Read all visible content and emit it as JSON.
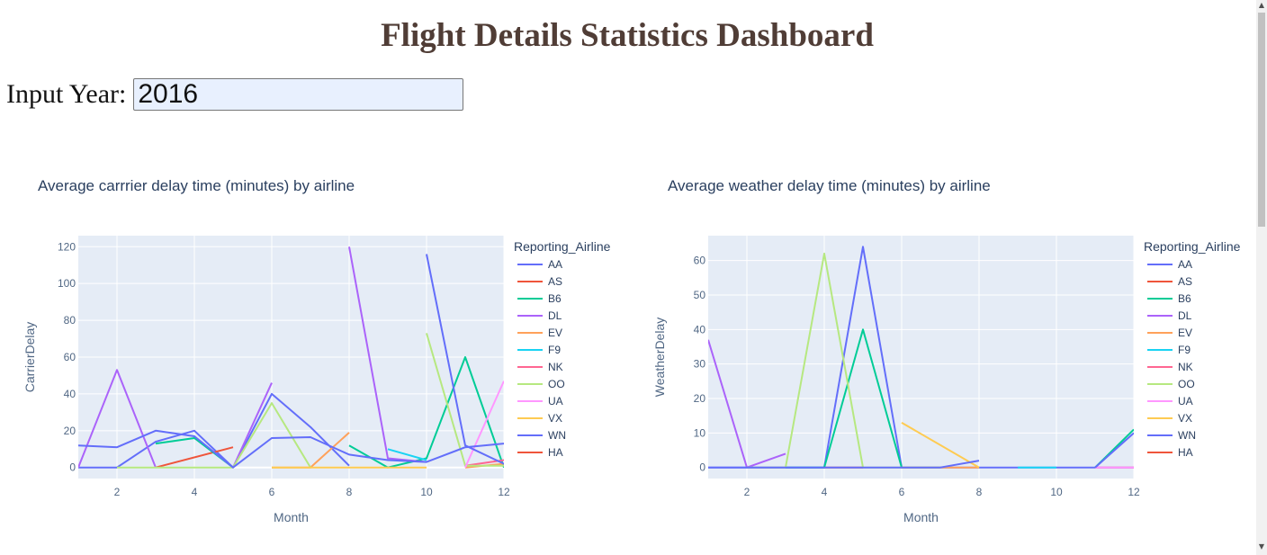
{
  "page": {
    "title": "Flight Details Statistics Dashboard"
  },
  "input": {
    "label": "Input Year:",
    "value": "2016"
  },
  "colors": {
    "title": "#503D36",
    "plot_bg": "#E5ECF6",
    "axis_text": "#506784",
    "title_text": "#2a3f5f"
  },
  "chart_data": [
    {
      "type": "line",
      "title": "Average carrrier delay time (minutes) by airline",
      "xlabel": "Month",
      "ylabel": "CarrierDelay",
      "xlim": [
        1,
        12
      ],
      "ylim": [
        -6,
        126
      ],
      "xticks": [
        2,
        4,
        6,
        8,
        10,
        12
      ],
      "yticks": [
        0,
        20,
        40,
        60,
        80,
        100,
        120
      ],
      "grid": true,
      "legend_title": "Reporting_Airline",
      "legend_position": "right",
      "series": [
        {
          "name": "AA",
          "color": "#636efa",
          "points": [
            [
              1,
              0
            ],
            [
              2,
              0
            ],
            [
              3,
              14
            ],
            [
              4,
              20
            ],
            [
              5,
              0
            ],
            [
              6,
              40
            ],
            [
              7,
              22
            ],
            [
              8,
              1
            ]
          ]
        },
        {
          "name": "AS",
          "color": "#EF553B",
          "points": [
            [
              3,
              0
            ],
            [
              5,
              11
            ]
          ]
        },
        {
          "name": "B6",
          "color": "#00cc96",
          "points": [
            [
              3,
              13
            ],
            [
              4,
              16
            ],
            [
              5,
              0
            ]
          ]
        },
        {
          "name": "B6",
          "color": "#00cc96",
          "points": [
            [
              8,
              12
            ],
            [
              9,
              0
            ],
            [
              10,
              5
            ],
            [
              11,
              60
            ],
            [
              12,
              0
            ]
          ]
        },
        {
          "name": "DL",
          "color": "#ab63fa",
          "points": [
            [
              1,
              0
            ],
            [
              2,
              53
            ],
            [
              3,
              0
            ]
          ]
        },
        {
          "name": "DL",
          "color": "#ab63fa",
          "points": [
            [
              5,
              0
            ],
            [
              6,
              46
            ]
          ]
        },
        {
          "name": "DL",
          "color": "#ab63fa",
          "points": [
            [
              8,
              120
            ],
            [
              9,
              5
            ],
            [
              10,
              3
            ]
          ]
        },
        {
          "name": "EV",
          "color": "#FFA15A",
          "points": [
            [
              6,
              0
            ],
            [
              7,
              0
            ],
            [
              8,
              19
            ]
          ]
        },
        {
          "name": "EV",
          "color": "#FFA15A",
          "points": [
            [
              11,
              0
            ],
            [
              12,
              2
            ]
          ]
        },
        {
          "name": "F9",
          "color": "#19d3f3",
          "points": [
            [
              9,
              10
            ],
            [
              10,
              4
            ]
          ]
        },
        {
          "name": "NK",
          "color": "#FF6692",
          "points": [
            [
              11,
              1
            ],
            [
              12,
              4
            ]
          ]
        },
        {
          "name": "OO",
          "color": "#B6E880",
          "points": [
            [
              2,
              0
            ],
            [
              3,
              0
            ],
            [
              4,
              0
            ],
            [
              5,
              0
            ],
            [
              6,
              35
            ],
            [
              7,
              0
            ]
          ]
        },
        {
          "name": "OO",
          "color": "#B6E880",
          "points": [
            [
              10,
              73
            ],
            [
              11,
              1
            ],
            [
              12,
              1
            ]
          ]
        },
        {
          "name": "UA",
          "color": "#FF97FF",
          "points": [
            [
              11,
              0
            ],
            [
              12,
              47
            ]
          ]
        },
        {
          "name": "VX",
          "color": "#FECB52",
          "points": [
            [
              6,
              0
            ],
            [
              7,
              0
            ],
            [
              8,
              0
            ],
            [
              9,
              0
            ],
            [
              10,
              0
            ]
          ]
        },
        {
          "name": "WN",
          "color": "#636efa",
          "points": [
            [
              1,
              12
            ],
            [
              2,
              11
            ],
            [
              3,
              20
            ],
            [
              4,
              17
            ],
            [
              5,
              0
            ],
            [
              6,
              16
            ],
            [
              7,
              16.5
            ],
            [
              8,
              7
            ],
            [
              9,
              4
            ],
            [
              10,
              3
            ],
            [
              11,
              11
            ],
            [
              12,
              13
            ]
          ]
        },
        {
          "name": "WN",
          "color": "#636efa",
          "points": [
            [
              10,
              116
            ],
            [
              11,
              12
            ],
            [
              12,
              2
            ]
          ]
        },
        {
          "name": "HA",
          "color": "#EF553B",
          "points": []
        }
      ]
    },
    {
      "type": "line",
      "title": "Average weather delay time (minutes) by airline",
      "xlabel": "Month",
      "ylabel": "WeatherDelay",
      "xlim": [
        1,
        12
      ],
      "ylim": [
        -3.2,
        67.2
      ],
      "xticks": [
        2,
        4,
        6,
        8,
        10,
        12
      ],
      "yticks": [
        0,
        10,
        20,
        30,
        40,
        50,
        60
      ],
      "grid": true,
      "legend_title": "Reporting_Airline",
      "legend_position": "right",
      "series": [
        {
          "name": "AA",
          "color": "#636efa",
          "points": [
            [
              1,
              0
            ],
            [
              2,
              0
            ],
            [
              3,
              0
            ],
            [
              4,
              0
            ],
            [
              5,
              64
            ],
            [
              6,
              0
            ],
            [
              7,
              0
            ],
            [
              8,
              0
            ],
            [
              9,
              0
            ],
            [
              10,
              0
            ],
            [
              11,
              0
            ],
            [
              12,
              0
            ]
          ]
        },
        {
          "name": "AS",
          "color": "#EF553B",
          "points": [
            [
              4,
              0
            ],
            [
              5,
              0
            ]
          ]
        },
        {
          "name": "B6",
          "color": "#00cc96",
          "points": [
            [
              3,
              0
            ],
            [
              4,
              0
            ],
            [
              5,
              40
            ],
            [
              6,
              0
            ]
          ]
        },
        {
          "name": "B6",
          "color": "#00cc96",
          "points": [
            [
              11,
              0
            ],
            [
              12,
              11
            ]
          ]
        },
        {
          "name": "DL",
          "color": "#ab63fa",
          "points": [
            [
              1,
              37
            ],
            [
              2,
              0
            ],
            [
              3,
              4
            ]
          ]
        },
        {
          "name": "EV",
          "color": "#FFA15A",
          "points": [
            [
              6,
              0
            ],
            [
              7,
              0
            ],
            [
              8,
              0
            ]
          ]
        },
        {
          "name": "F9",
          "color": "#19d3f3",
          "points": [
            [
              9,
              0
            ],
            [
              10,
              0
            ]
          ]
        },
        {
          "name": "NK",
          "color": "#FF6692",
          "points": [
            [
              11,
              0
            ],
            [
              12,
              0
            ]
          ]
        },
        {
          "name": "OO",
          "color": "#B6E880",
          "points": [
            [
              2,
              0
            ],
            [
              3,
              0
            ],
            [
              4,
              62
            ],
            [
              5,
              0
            ],
            [
              6,
              0
            ],
            [
              7,
              0
            ]
          ]
        },
        {
          "name": "UA",
          "color": "#FF97FF",
          "points": [
            [
              11,
              0
            ],
            [
              12,
              0
            ]
          ]
        },
        {
          "name": "VX",
          "color": "#FECB52",
          "points": [
            [
              6,
              13
            ],
            [
              8,
              0
            ]
          ]
        },
        {
          "name": "WN",
          "color": "#636efa",
          "points": [
            [
              1,
              0
            ],
            [
              2,
              0
            ],
            [
              3,
              0
            ],
            [
              4,
              0
            ],
            [
              5,
              0
            ],
            [
              6,
              0
            ],
            [
              7,
              0
            ],
            [
              8,
              2
            ]
          ]
        },
        {
          "name": "WN",
          "color": "#636efa",
          "points": [
            [
              11,
              0
            ],
            [
              12,
              10
            ]
          ]
        },
        {
          "name": "HA",
          "color": "#EF553B",
          "points": []
        }
      ]
    }
  ]
}
